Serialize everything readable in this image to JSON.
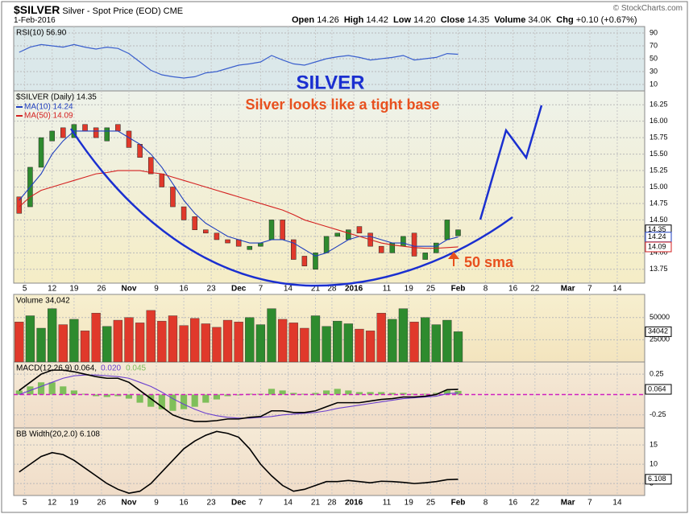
{
  "header": {
    "symbol": "$SILVER",
    "description": "Silver - Spot Price (EOD) CME",
    "date": "1-Feb-2016",
    "open_label": "Open",
    "open": "14.26",
    "high_label": "High",
    "high": "14.42",
    "low_label": "Low",
    "low": "14.20",
    "close_label": "Close",
    "close": "14.35",
    "volume_label": "Volume",
    "volume": "34.0K",
    "chg_label": "Chg",
    "chg": "+0.10 (+0.67%)",
    "credit": "© StockCharts.com"
  },
  "chart_data": [
    {
      "type": "line",
      "xlim": [
        -2,
        113
      ],
      "x": [
        -1,
        1,
        3,
        5,
        7,
        9,
        11,
        13,
        15,
        17,
        19,
        21,
        23,
        25,
        27,
        29,
        31,
        33,
        35,
        37,
        39,
        41,
        43,
        45,
        47,
        49,
        51,
        53,
        55,
        57,
        59,
        61,
        63,
        65,
        67,
        69,
        71,
        73,
        75,
        77,
        79
      ],
      "ylim": [
        0,
        100
      ],
      "yticks": [
        90,
        70,
        50,
        30,
        10
      ],
      "grid": true,
      "series": [
        {
          "name": "RSI(10) 56.90",
          "color": "#3a5fcd",
          "values": [
            60,
            68,
            72,
            70,
            68,
            72,
            68,
            65,
            68,
            66,
            58,
            45,
            32,
            25,
            22,
            20,
            22,
            28,
            30,
            35,
            40,
            42,
            45,
            55,
            48,
            42,
            40,
            45,
            50,
            53,
            55,
            52,
            48,
            50,
            52,
            55,
            48,
            50,
            52,
            58,
            56.9
          ]
        }
      ]
    },
    {
      "type": "candlestick",
      "title": "SILVER",
      "annotations": [
        "Silver looks like a tight base",
        "50 sma"
      ],
      "xlim": [
        -2,
        113
      ],
      "x": [
        -1,
        1,
        3,
        5,
        7,
        9,
        11,
        13,
        15,
        17,
        19,
        21,
        23,
        25,
        27,
        29,
        31,
        33,
        35,
        37,
        39,
        41,
        43,
        45,
        47,
        49,
        51,
        53,
        55,
        57,
        59,
        61,
        63,
        65,
        67,
        69,
        71,
        73,
        75,
        77,
        79
      ],
      "ylim": [
        13.54,
        16.46
      ],
      "yticks": [
        16.25,
        {
          "value": 16,
          "label": "16.00"
        },
        15.75,
        {
          "value": 15.5,
          "label": "15.50"
        },
        15.25,
        {
          "value": 15,
          "label": "15.00"
        },
        14.75,
        {
          "value": 14.5,
          "label": "14.50"
        },
        14.25,
        {
          "value": 14,
          "label": "14.00"
        },
        13.75
      ],
      "grid": true,
      "xticks": [
        {
          "value": 0,
          "label": "5"
        },
        {
          "value": 5,
          "label": "12"
        },
        {
          "value": 9,
          "label": "19"
        },
        {
          "value": 14,
          "label": "26"
        },
        {
          "value": 19,
          "label": "Nov"
        },
        {
          "value": 24,
          "label": "9"
        },
        {
          "value": 29,
          "label": "16"
        },
        {
          "value": 34,
          "label": "23"
        },
        {
          "value": 39,
          "label": "Dec"
        },
        {
          "value": 43,
          "label": "7"
        },
        {
          "value": 48,
          "label": "14"
        },
        {
          "value": 53,
          "label": "21"
        },
        {
          "value": 56,
          "label": "28"
        },
        {
          "value": 60,
          "label": "2016"
        },
        {
          "value": 66,
          "label": "11"
        },
        {
          "value": 70,
          "label": "19"
        },
        {
          "value": 74,
          "label": "25"
        },
        {
          "value": 79,
          "label": "Feb"
        },
        {
          "value": 84,
          "label": "8"
        },
        {
          "value": 89,
          "label": "16"
        },
        {
          "value": 93,
          "label": "22"
        },
        {
          "value": 99,
          "label": "Mar"
        },
        {
          "value": 103,
          "label": "7"
        },
        {
          "value": 108,
          "label": "14"
        }
      ],
      "series": [
        {
          "name": "$SILVER (Daily) 14.35",
          "color": "#000000",
          "up_color": "#2e8b2e",
          "down_color": "#e0392b",
          "open": [
            14.85,
            14.7,
            15.3,
            15.7,
            15.9,
            15.75,
            15.95,
            15.9,
            15.7,
            15.95,
            15.85,
            15.65,
            15.45,
            15.2,
            15.0,
            14.7,
            14.55,
            14.35,
            14.3,
            14.2,
            14.2,
            14.05,
            14.1,
            14.2,
            14.5,
            14.2,
            13.95,
            13.75,
            14.0,
            14.25,
            14.2,
            14.4,
            14.3,
            14.1,
            14.0,
            14.1,
            14.3,
            13.9,
            14.0,
            14.2,
            14.26
          ],
          "values": [
            14.6,
            15.3,
            15.75,
            15.85,
            15.75,
            15.95,
            15.85,
            15.75,
            15.9,
            15.85,
            15.6,
            15.45,
            15.2,
            15.0,
            14.7,
            14.5,
            14.35,
            14.3,
            14.2,
            14.15,
            14.1,
            14.1,
            14.15,
            14.5,
            14.2,
            13.9,
            13.8,
            14.0,
            14.25,
            14.3,
            14.35,
            14.3,
            14.1,
            14.0,
            14.15,
            14.25,
            13.95,
            14.0,
            14.15,
            14.5,
            14.35
          ]
        },
        {
          "name": "MA(10) 14.24",
          "color": "#1f3fbf",
          "values": [
            14.8,
            15.0,
            15.2,
            15.5,
            15.7,
            15.85,
            15.85,
            15.85,
            15.85,
            15.85,
            15.75,
            15.65,
            15.5,
            15.3,
            15.05,
            14.8,
            14.6,
            14.45,
            14.35,
            14.25,
            14.2,
            14.15,
            14.15,
            14.2,
            14.2,
            14.15,
            14.05,
            13.95,
            14.0,
            14.1,
            14.2,
            14.25,
            14.25,
            14.2,
            14.15,
            14.15,
            14.1,
            14.1,
            14.1,
            14.2,
            14.24
          ]
        },
        {
          "name": "MA(50) 14.09",
          "color": "#d42020",
          "values": [
            14.7,
            14.85,
            14.95,
            15.0,
            15.05,
            15.1,
            15.15,
            15.2,
            15.22,
            15.25,
            15.25,
            15.25,
            15.22,
            15.2,
            15.15,
            15.1,
            15.05,
            15.0,
            14.95,
            14.9,
            14.85,
            14.8,
            14.75,
            14.7,
            14.65,
            14.58,
            14.5,
            14.45,
            14.4,
            14.35,
            14.3,
            14.25,
            14.2,
            14.15,
            14.12,
            14.1,
            14.08,
            14.07,
            14.07,
            14.08,
            14.09
          ]
        }
      ]
    },
    {
      "type": "bar",
      "xlim": [
        -2,
        113
      ],
      "x": [
        -1,
        1,
        3,
        5,
        7,
        9,
        11,
        13,
        15,
        17,
        19,
        21,
        23,
        25,
        27,
        29,
        31,
        33,
        35,
        37,
        39,
        41,
        43,
        45,
        47,
        49,
        51,
        53,
        55,
        57,
        59,
        61,
        63,
        65,
        67,
        69,
        71,
        73,
        75,
        77,
        79
      ],
      "ylim": [
        0,
        76000
      ],
      "yticks": [
        50000,
        25000
      ],
      "grid": true,
      "up_color": "#2e8b2e",
      "down_color": "#e0392b",
      "series": [
        {
          "name": "Volume 34,042",
          "color": "#000000",
          "values": [
            45000,
            52000,
            38000,
            60000,
            42000,
            48000,
            35000,
            55000,
            40000,
            47000,
            50000,
            44000,
            58000,
            46000,
            52000,
            41000,
            49000,
            43000,
            39000,
            47000,
            45000,
            50000,
            42000,
            60000,
            48000,
            44000,
            38000,
            52000,
            40000,
            46000,
            43000,
            37000,
            35000,
            55000,
            48000,
            60000,
            45000,
            50000,
            42000,
            47000,
            34042
          ]
        }
      ]
    },
    {
      "type": "macd",
      "xlim": [
        -2,
        113
      ],
      "x": [
        -1,
        1,
        3,
        5,
        7,
        9,
        11,
        13,
        15,
        17,
        19,
        21,
        23,
        25,
        27,
        29,
        31,
        33,
        35,
        37,
        39,
        41,
        43,
        45,
        47,
        49,
        51,
        53,
        55,
        57,
        59,
        61,
        63,
        65,
        67,
        69,
        71,
        73,
        75,
        77,
        79
      ],
      "ylim": [
        -0.41,
        0.4
      ],
      "yticks": [
        0.25,
        -0.25
      ],
      "grid": true,
      "series": [
        {
          "name": "MACD(12,26,9) 0.064,",
          "color": "#000000",
          "values": [
            0.05,
            0.15,
            0.25,
            0.3,
            0.3,
            0.28,
            0.25,
            0.22,
            0.2,
            0.2,
            0.15,
            0.05,
            -0.05,
            -0.15,
            -0.25,
            -0.3,
            -0.33,
            -0.33,
            -0.32,
            -0.3,
            -0.3,
            -0.28,
            -0.27,
            -0.2,
            -0.2,
            -0.22,
            -0.22,
            -0.2,
            -0.15,
            -0.1,
            -0.1,
            -0.1,
            -0.08,
            -0.06,
            -0.05,
            -0.03,
            -0.03,
            -0.02,
            0.0,
            0.06,
            0.064
          ]
        },
        {
          "name": "0.020",
          "color": "#6a3fcf",
          "values": [
            0.0,
            0.05,
            0.1,
            0.15,
            0.2,
            0.23,
            0.24,
            0.24,
            0.23,
            0.22,
            0.2,
            0.15,
            0.1,
            0.03,
            -0.05,
            -0.12,
            -0.18,
            -0.23,
            -0.26,
            -0.28,
            -0.29,
            -0.29,
            -0.28,
            -0.27,
            -0.25,
            -0.24,
            -0.23,
            -0.22,
            -0.2,
            -0.17,
            -0.15,
            -0.13,
            -0.11,
            -0.09,
            -0.07,
            -0.05,
            -0.04,
            -0.03,
            -0.02,
            0.01,
            0.02
          ]
        },
        {
          "name": "0.045",
          "color": "#7fbf5a",
          "values": [
            0.05,
            0.1,
            0.15,
            0.15,
            0.1,
            0.05,
            0.01,
            -0.02,
            -0.03,
            -0.02,
            -0.05,
            -0.1,
            -0.15,
            -0.18,
            -0.2,
            -0.18,
            -0.15,
            -0.1,
            -0.06,
            -0.02,
            -0.01,
            0.01,
            0.01,
            0.07,
            0.05,
            0.02,
            0.01,
            0.02,
            0.05,
            0.07,
            0.05,
            0.03,
            0.03,
            0.03,
            0.02,
            0.02,
            0.01,
            0.01,
            0.02,
            0.05,
            0.045
          ]
        }
      ]
    },
    {
      "type": "line",
      "xlim": [
        -2,
        113
      ],
      "x": [
        -1,
        1,
        3,
        5,
        7,
        9,
        11,
        13,
        15,
        17,
        19,
        21,
        23,
        25,
        27,
        29,
        31,
        33,
        35,
        37,
        39,
        41,
        43,
        45,
        47,
        49,
        51,
        53,
        55,
        57,
        59,
        61,
        63,
        65,
        67,
        69,
        71,
        73,
        75,
        77,
        79
      ],
      "ylim": [
        1.9,
        19.4
      ],
      "yticks": [
        15,
        10,
        5
      ],
      "grid": true,
      "xticks": [
        {
          "value": 0,
          "label": "5"
        },
        {
          "value": 5,
          "label": "12"
        },
        {
          "value": 9,
          "label": "19"
        },
        {
          "value": 14,
          "label": "26"
        },
        {
          "value": 19,
          "label": "Nov"
        },
        {
          "value": 24,
          "label": "9"
        },
        {
          "value": 29,
          "label": "16"
        },
        {
          "value": 34,
          "label": "23"
        },
        {
          "value": 39,
          "label": "Dec"
        },
        {
          "value": 43,
          "label": "7"
        },
        {
          "value": 48,
          "label": "14"
        },
        {
          "value": 53,
          "label": "21"
        },
        {
          "value": 56,
          "label": "28"
        },
        {
          "value": 60,
          "label": "2016"
        },
        {
          "value": 66,
          "label": "11"
        },
        {
          "value": 70,
          "label": "19"
        },
        {
          "value": 74,
          "label": "25"
        },
        {
          "value": 79,
          "label": "Feb"
        },
        {
          "value": 84,
          "label": "8"
        },
        {
          "value": 89,
          "label": "16"
        },
        {
          "value": 93,
          "label": "22"
        },
        {
          "value": 99,
          "label": "Mar"
        },
        {
          "value": 103,
          "label": "7"
        },
        {
          "value": 108,
          "label": "14"
        }
      ],
      "series": [
        {
          "name": "BB Width(20,2.0) 6.108",
          "color": "#000000",
          "values": [
            8,
            10,
            12,
            13,
            12.5,
            11,
            9,
            7,
            5,
            3.5,
            2.5,
            3,
            5,
            8,
            11,
            14,
            16,
            17.5,
            18.5,
            18,
            17,
            14,
            10,
            7,
            4.5,
            3,
            3.5,
            4.5,
            5.5,
            5.5,
            5.8,
            5.5,
            5.2,
            5.6,
            5.5,
            5.3,
            5,
            5.2,
            5.5,
            6,
            6.108
          ]
        }
      ]
    }
  ]
}
